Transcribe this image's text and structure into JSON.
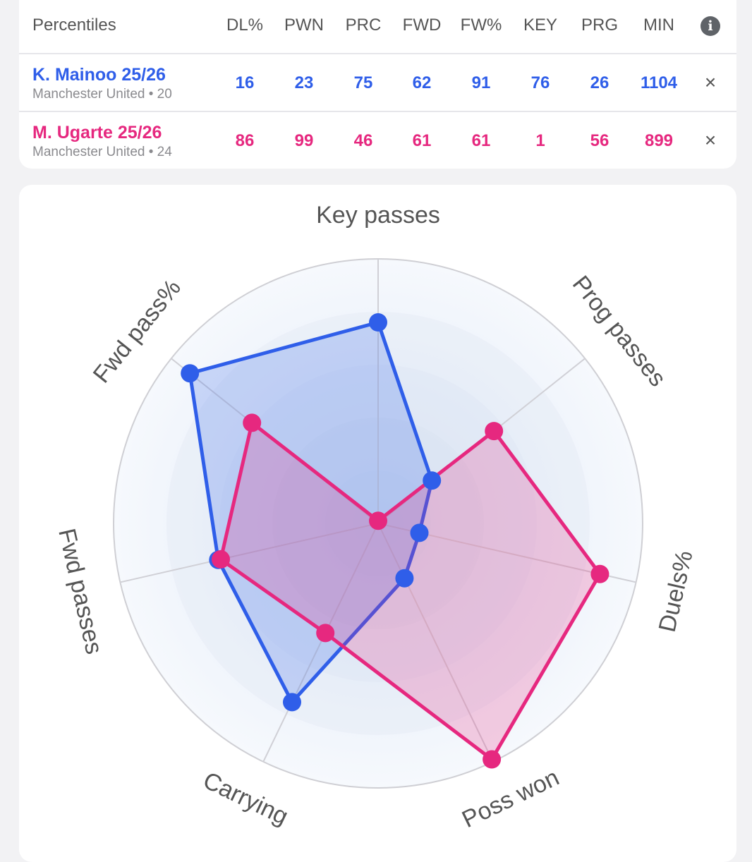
{
  "table": {
    "header_label": "Percentiles",
    "columns": [
      "DL%",
      "PWN",
      "PRC",
      "FWD",
      "FW%",
      "KEY",
      "PRG",
      "MIN"
    ],
    "info_icon": "info-icon",
    "close_glyph": "×",
    "players": [
      {
        "name": "K. Mainoo 25/26",
        "team_line": "Manchester United • 20",
        "color": "#2f5ee9",
        "values": [
          "16",
          "23",
          "75",
          "62",
          "91",
          "76",
          "26",
          "1104"
        ]
      },
      {
        "name": "M. Ugarte 25/26",
        "team_line": "Manchester United • 24",
        "color": "#e6287f",
        "values": [
          "86",
          "99",
          "46",
          "61",
          "61",
          "1",
          "56",
          "899"
        ]
      }
    ]
  },
  "chart_data": {
    "type": "radar",
    "axes": [
      "Key passes",
      "Prog passes",
      "Duels%",
      "Poss won",
      "Carrying",
      "Fwd passes",
      "Fwd pass%"
    ],
    "range": [
      0,
      100
    ],
    "series": [
      {
        "name": "K. Mainoo 25/26",
        "color": "#2f5ee9",
        "values": [
          76,
          26,
          16,
          23,
          75,
          62,
          91
        ]
      },
      {
        "name": "M. Ugarte 25/26",
        "color": "#e6287f",
        "values": [
          1,
          56,
          86,
          99,
          46,
          61,
          61
        ]
      }
    ]
  }
}
